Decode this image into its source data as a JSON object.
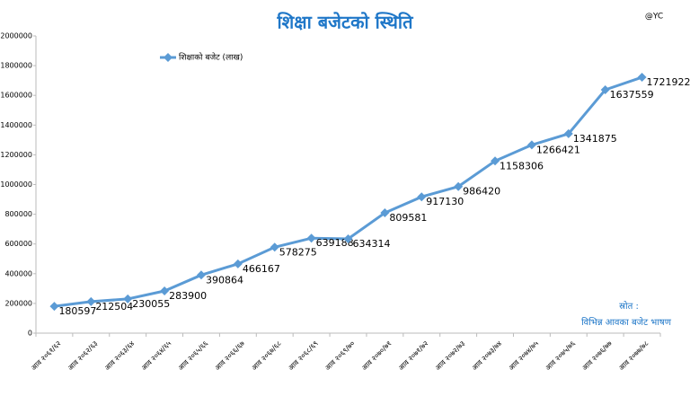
{
  "chart_data": {
    "type": "line",
    "title": "शिक्षा बजेटको स्थिति",
    "credit": "@YC",
    "source_label": "स्रोत :",
    "source": "विभिन्न आवका बजेट भाषण",
    "categories": [
      "आव २०६१/६२",
      "आव २०६२/६३",
      "आव २०६३/६४",
      "आव २०६४/६५",
      "आव २०६५/६६",
      "आव २०६६/६७",
      "आव २०६७/६८",
      "आव २०६८/६९",
      "आव २०६९/७०",
      "आव २०७०/७१",
      "आव २०७१/७२",
      "आव २०७२/७३",
      "आव २०७३/७४",
      "आव २०७४/७५",
      "आव २०७५/७६",
      "आव २०७६/७७",
      "आव २०७७/७८"
    ],
    "series": [
      {
        "name": "शिक्षाको बजेट (लाख)",
        "color": "#5b9bd5",
        "values": [
          180597,
          212504,
          230055,
          283900,
          390864,
          466167,
          578275,
          639188,
          634314,
          809581,
          917130,
          986420,
          1158306,
          1266421,
          1341875,
          1637559,
          1721922
        ]
      }
    ],
    "ylim": [
      0,
      2000000
    ],
    "yticks": [
      0,
      200000,
      400000,
      600000,
      800000,
      1000000,
      1200000,
      1400000,
      1600000,
      1800000,
      2000000
    ],
    "grid": false,
    "legend": "top-left"
  }
}
